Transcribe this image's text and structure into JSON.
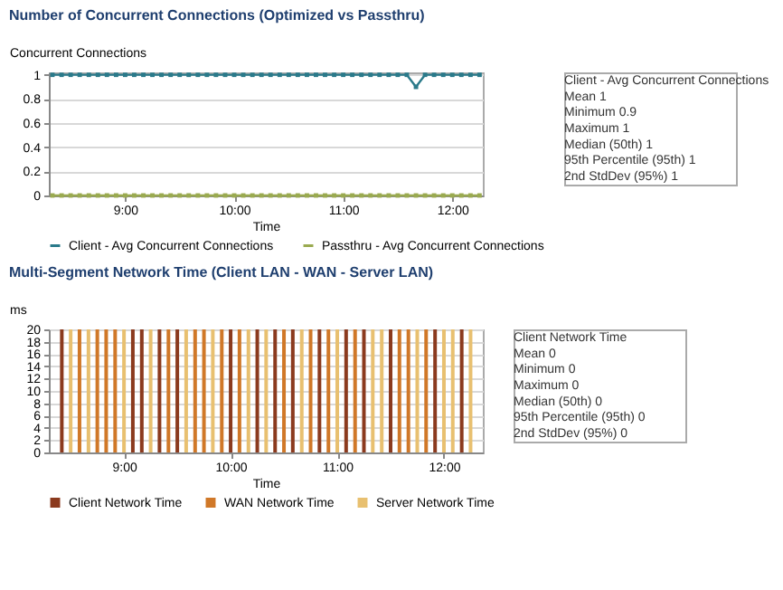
{
  "chart_data": [
    {
      "type": "line",
      "title": "Number of Concurrent Connections (Optimized vs Passthru)",
      "ylabel": "Concurrent Connections",
      "xlabel": "Time",
      "x": [
        8.333,
        8.417,
        8.5,
        8.583,
        8.667,
        8.75,
        8.833,
        8.917,
        9.0,
        9.083,
        9.167,
        9.25,
        9.333,
        9.417,
        9.5,
        9.583,
        9.667,
        9.75,
        9.833,
        9.917,
        10.0,
        10.083,
        10.167,
        10.25,
        10.333,
        10.417,
        10.5,
        10.583,
        10.667,
        10.75,
        10.833,
        10.917,
        11.0,
        11.083,
        11.167,
        11.25,
        11.333,
        11.417,
        11.5,
        11.583,
        11.667,
        11.75,
        11.833,
        11.917,
        12.0,
        12.083,
        12.167,
        12.25
      ],
      "series": [
        {
          "name": "Client - Avg Concurrent Connections",
          "color": "#2a7a8a",
          "values": [
            1,
            1,
            1,
            1,
            1,
            1,
            1,
            1,
            1,
            1,
            1,
            1,
            1,
            1,
            1,
            1,
            1,
            1,
            1,
            1,
            1,
            1,
            1,
            1,
            1,
            1,
            1,
            1,
            1,
            1,
            1,
            1,
            1,
            1,
            1,
            1,
            1,
            1,
            1,
            1,
            0.9,
            1,
            1,
            1,
            1,
            1,
            1,
            1
          ]
        },
        {
          "name": "Passthru - Avg Concurrent Connections",
          "color": "#9aaa50",
          "values": [
            0,
            0,
            0,
            0,
            0,
            0,
            0,
            0,
            0,
            0,
            0,
            0,
            0,
            0,
            0,
            0,
            0,
            0,
            0,
            0,
            0,
            0,
            0,
            0,
            0,
            0,
            0,
            0,
            0,
            0,
            0,
            0,
            0,
            0,
            0,
            0,
            0,
            0,
            0,
            0,
            0,
            0,
            0,
            0,
            0,
            0,
            0,
            0
          ]
        }
      ],
      "xlim": [
        8.3,
        12.28
      ],
      "xticks": [
        {
          "value": 9,
          "label": "9:00"
        },
        {
          "value": 10,
          "label": "10:00"
        },
        {
          "value": 11,
          "label": "11:00"
        },
        {
          "value": 12,
          "label": "12:00"
        }
      ],
      "ylim": [
        0,
        1.02
      ],
      "yticks": [
        0,
        0.2,
        0.4,
        0.6,
        0.8,
        1
      ],
      "grid": "y",
      "legend": "bottom",
      "marker": "square",
      "line_style": "solid",
      "annotations": [
        "Client - Avg Concurrent Connections",
        "Mean 1",
        "Minimum 0.9",
        "Maximum 1",
        "Median (50th) 1",
        "95th Percentile (95th) 1",
        "2nd StdDev (95%) 1"
      ]
    },
    {
      "type": "bar",
      "title": "Multi-Segment Network Time (Client LAN - WAN - Server LAN)",
      "ylabel": "ms",
      "xlabel": "Time",
      "series": [
        {
          "name": "Client Network Time",
          "color": "#8b3a1e",
          "x": [
            8.417,
            9.083,
            9.167,
            9.333,
            9.5,
            10.0,
            10.25,
            10.417,
            10.583,
            10.833,
            11.083,
            11.25,
            11.5,
            11.917,
            12.167
          ],
          "values": [
            20,
            20,
            20,
            20,
            20,
            20,
            20,
            20,
            20,
            20,
            20,
            20,
            20,
            20,
            20
          ]
        },
        {
          "name": "WAN Network Time",
          "color": "#d07828",
          "x": [
            8.583,
            8.75,
            8.833,
            8.917,
            9.417,
            9.667,
            9.75,
            9.917,
            10.083,
            10.5,
            10.75,
            10.917,
            11.167,
            11.583,
            11.667,
            11.833
          ],
          "values": [
            20,
            20,
            20,
            20,
            20,
            20,
            20,
            20,
            20,
            20,
            20,
            20,
            20,
            20,
            20,
            20
          ]
        },
        {
          "name": "Server Network Time",
          "color": "#e8c070",
          "x": [
            8.5,
            8.667,
            9.0,
            9.25,
            9.583,
            9.833,
            10.167,
            10.333,
            10.667,
            11.0,
            11.333,
            11.417,
            11.75,
            12.0,
            12.083,
            12.25
          ],
          "values": [
            20,
            20,
            20,
            20,
            20,
            20,
            20,
            20,
            20,
            20,
            20,
            20,
            20,
            20,
            20,
            20
          ]
        }
      ],
      "xlim": [
        8.38,
        12.28
      ],
      "xticks": [
        {
          "value": 9,
          "label": "9:00"
        },
        {
          "value": 10,
          "label": "10:00"
        },
        {
          "value": 11,
          "label": "11:00"
        },
        {
          "value": 12,
          "label": "12:00"
        }
      ],
      "ylim": [
        0,
        20
      ],
      "yticks": [
        0,
        2,
        4,
        6,
        8,
        10,
        12,
        14,
        16,
        18,
        20
      ],
      "grid": "y",
      "legend": "bottom",
      "annotations": [
        "Client Network Time",
        "Mean 0",
        "Minimum 0",
        "Maximum 0",
        "Median (50th) 0",
        "95th Percentile (95th) 0",
        "2nd StdDev (95%) 0"
      ]
    }
  ]
}
